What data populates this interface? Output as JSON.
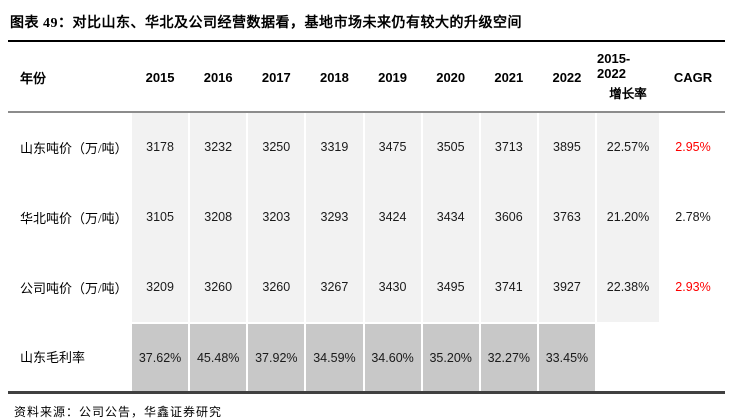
{
  "title": "图表 49：对比山东、华北及公司经营数据看，基地市场未来仍有较大的升级空间",
  "table": {
    "header": {
      "year_label": "年份",
      "years": [
        "2015",
        "2016",
        "2017",
        "2018",
        "2019",
        "2020",
        "2021",
        "2022"
      ],
      "growth_line1": "2015-2022",
      "growth_line2": "增长率",
      "cagr_label": "CAGR"
    },
    "rows": [
      {
        "label": "山东吨价（万/吨）",
        "values": [
          "3178",
          "3232",
          "3250",
          "3319",
          "3475",
          "3505",
          "3713",
          "3895"
        ],
        "growth": "22.57%",
        "cagr": "2.95%"
      },
      {
        "label": "华北吨价（万/吨）",
        "values": [
          "3105",
          "3208",
          "3203",
          "3293",
          "3424",
          "3434",
          "3606",
          "3763"
        ],
        "growth": "21.20%",
        "cagr": "2.78%"
      },
      {
        "label": "公司吨价（万/吨）",
        "values": [
          "3209",
          "3260",
          "3260",
          "3267",
          "3430",
          "3495",
          "3741",
          "3927"
        ],
        "growth": "22.38%",
        "cagr": "2.93%"
      }
    ],
    "highlight_row": {
      "label": "山东毛利率",
      "values": [
        "37.62%",
        "45.48%",
        "37.92%",
        "34.59%",
        "34.60%",
        "35.20%",
        "32.27%",
        "33.45%"
      ]
    }
  },
  "source": "资料来源：公司公告，华鑫证券研究",
  "colors": {
    "light_cell": "#f2f2f2",
    "dark_cell": "#c8c8c8",
    "red_value": "#fe0000",
    "top_rule": "#000000",
    "bottom_rule": "#404040"
  }
}
